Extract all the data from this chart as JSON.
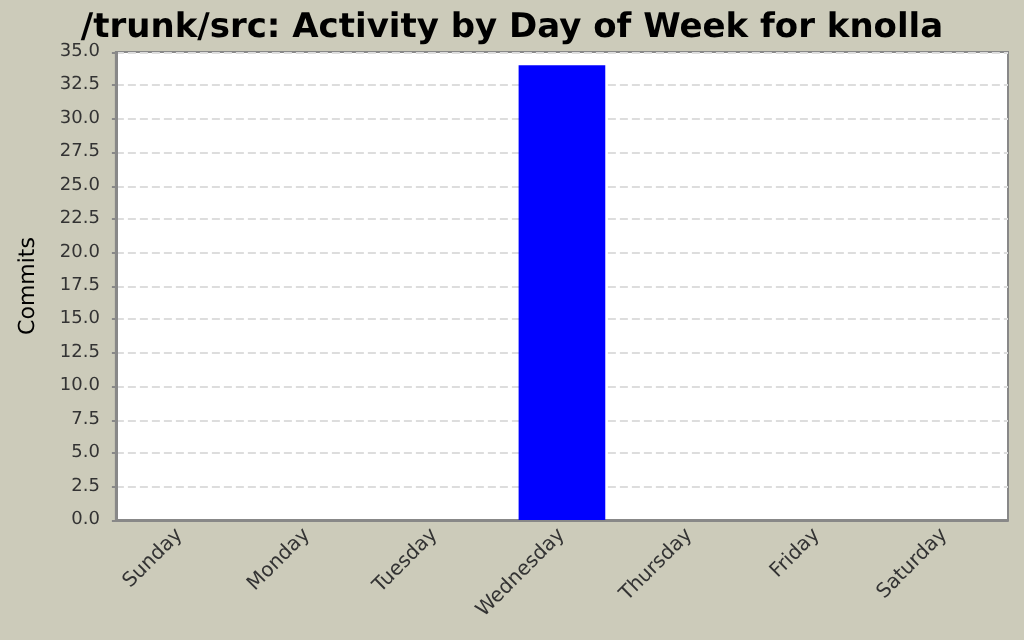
{
  "chart_data": {
    "type": "bar",
    "title": "/trunk/src: Activity by Day of Week for knolla",
    "ylabel": "Commits",
    "categories": [
      "Sunday",
      "Monday",
      "Tuesday",
      "Wednesday",
      "Thursday",
      "Friday",
      "Saturday"
    ],
    "values": [
      0,
      0,
      0,
      34,
      0,
      0,
      0
    ],
    "color": "#0000ff",
    "ylim": [
      0,
      35
    ],
    "yticks": [
      {
        "value": 0,
        "label": "0.0"
      },
      {
        "value": 2.5,
        "label": "2.5"
      },
      {
        "value": 5,
        "label": "5.0"
      },
      {
        "value": 7.5,
        "label": "7.5"
      },
      {
        "value": 10,
        "label": "10.0"
      },
      {
        "value": 12.5,
        "label": "12.5"
      },
      {
        "value": 15,
        "label": "15.0"
      },
      {
        "value": 17.5,
        "label": "17.5"
      },
      {
        "value": 20,
        "label": "20.0"
      },
      {
        "value": 22.5,
        "label": "22.5"
      },
      {
        "value": 25,
        "label": "25.0"
      },
      {
        "value": 27.5,
        "label": "27.5"
      },
      {
        "value": 30,
        "label": "30.0"
      },
      {
        "value": 32.5,
        "label": "32.5"
      },
      {
        "value": 35,
        "label": "35.0"
      }
    ],
    "grid": "y"
  }
}
